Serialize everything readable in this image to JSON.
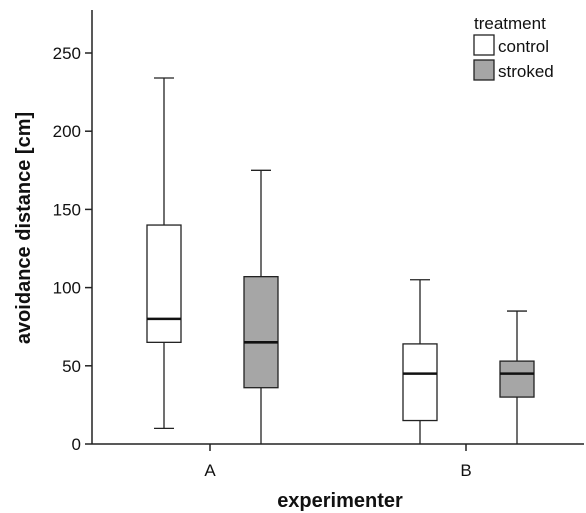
{
  "chart_data": {
    "type": "boxplot",
    "xlabel": "experimenter",
    "ylabel": "avoidance distance [cm]",
    "categories": [
      "A",
      "B"
    ],
    "ylim": [
      0,
      260
    ],
    "yticks": [
      0,
      50,
      100,
      150,
      200,
      250
    ],
    "legend": {
      "title": "treatment",
      "position": "top-right"
    },
    "series": [
      {
        "name": "control",
        "color": "#ffffff",
        "boxes": [
          {
            "category": "A",
            "min": 10,
            "q1": 65,
            "median": 80,
            "q3": 140,
            "max": 234
          },
          {
            "category": "B",
            "min": 0,
            "q1": 15,
            "median": 45,
            "q3": 64,
            "max": 105
          }
        ]
      },
      {
        "name": "stroked",
        "color": "#a6a6a6",
        "boxes": [
          {
            "category": "A",
            "min": 0,
            "q1": 36,
            "median": 65,
            "q3": 107,
            "max": 175
          },
          {
            "category": "B",
            "min": 0,
            "q1": 30,
            "median": 45,
            "q3": 53,
            "max": 85
          }
        ]
      }
    ],
    "grid": false
  }
}
